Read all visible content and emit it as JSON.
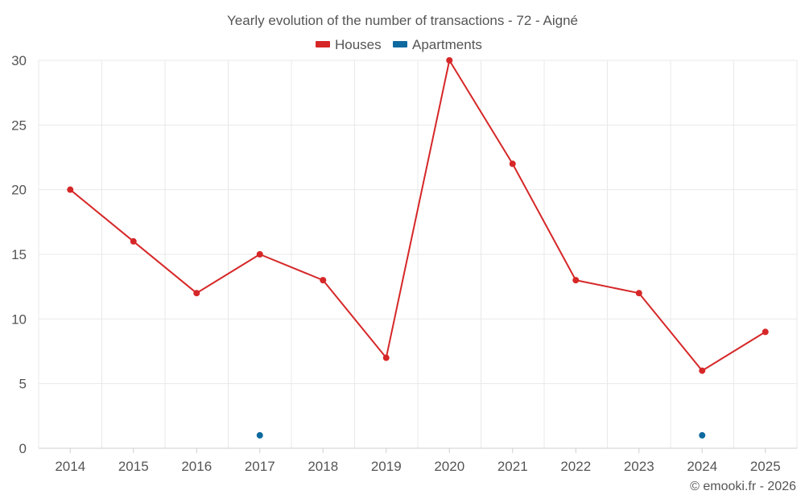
{
  "chart_data": {
    "type": "line",
    "title": "Yearly evolution of the number of transactions - 72 - Aigné",
    "categories": [
      "2014",
      "2015",
      "2016",
      "2017",
      "2018",
      "2019",
      "2020",
      "2021",
      "2022",
      "2023",
      "2024",
      "2025"
    ],
    "ylim": [
      0,
      30
    ],
    "yticks": [
      0,
      5,
      10,
      15,
      20,
      25,
      30
    ],
    "grid": true,
    "legend_position": "top-center",
    "series": [
      {
        "name": "Houses",
        "color": "#d62728",
        "values": [
          20,
          16,
          12,
          15,
          13,
          7,
          30,
          22,
          13,
          12,
          6,
          9
        ],
        "line": true
      },
      {
        "name": "Apartments",
        "color": "#0f6aa0",
        "values": [
          null,
          null,
          null,
          1,
          null,
          null,
          null,
          null,
          null,
          null,
          1,
          null
        ],
        "line": false
      }
    ]
  },
  "credit": "© emooki.fr - 2026"
}
